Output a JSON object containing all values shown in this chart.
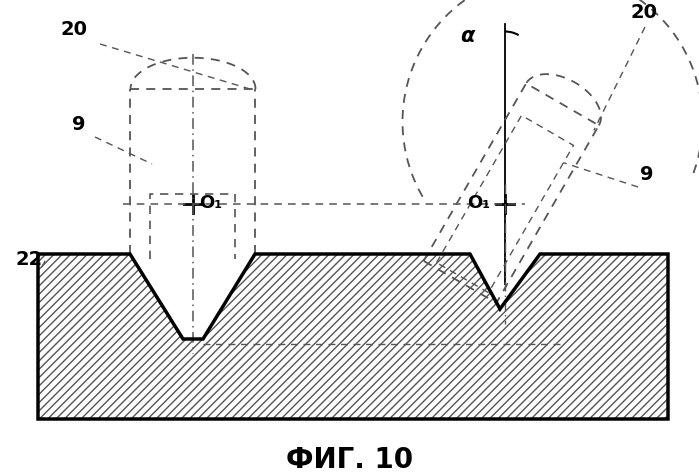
{
  "title": "ФИГ. 10",
  "title_fontsize": 20,
  "background_color": "#ffffff",
  "line_color": "#000000",
  "dashed_color": "#555555",
  "label_20_left": "20",
  "label_20_right": "20",
  "label_9_left": "9",
  "label_9_right": "9",
  "label_22": "22",
  "label_O1": "O₁",
  "label_alpha": "α",
  "fig_width": 6.99,
  "fig_height": 4.77
}
